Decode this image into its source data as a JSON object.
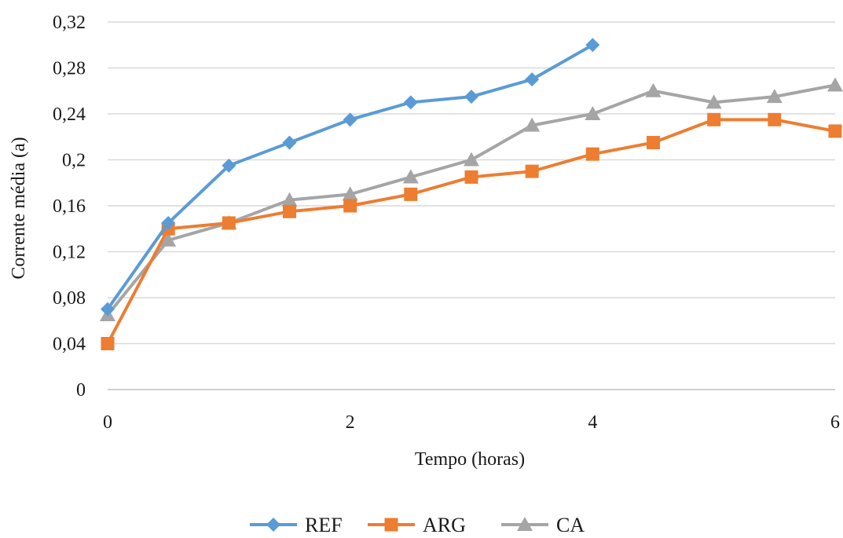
{
  "chart_data": {
    "type": "line",
    "xlabel": "Tempo (horas)",
    "ylabel": "Corrente média (a)",
    "xlim": [
      0,
      6
    ],
    "ylim": [
      0,
      0.32
    ],
    "x_ticks": [
      "0",
      "2",
      "4",
      "6"
    ],
    "y_ticks": [
      "0",
      "0,04",
      "0,08",
      "0,12",
      "0,16",
      "0,2",
      "0,24",
      "0,28",
      "0,32"
    ],
    "grid": "horizontal",
    "legend_position": "bottom",
    "series": [
      {
        "name": "REF",
        "color": "#5b9bd5",
        "marker": "diamond",
        "x": [
          0,
          0.5,
          1,
          1.5,
          2,
          2.5,
          3,
          3.5,
          4
        ],
        "y": [
          0.07,
          0.145,
          0.195,
          0.215,
          0.235,
          0.25,
          0.255,
          0.27,
          0.3
        ]
      },
      {
        "name": "ARG",
        "color": "#ed7d31",
        "marker": "square",
        "x": [
          0,
          0.5,
          1,
          1.5,
          2,
          2.5,
          3,
          3.5,
          4,
          4.5,
          5,
          5.5,
          6
        ],
        "y": [
          0.04,
          0.14,
          0.145,
          0.155,
          0.16,
          0.17,
          0.185,
          0.19,
          0.205,
          0.215,
          0.235,
          0.235,
          0.225
        ]
      },
      {
        "name": "CA",
        "color": "#a5a5a5",
        "marker": "triangle",
        "x": [
          0,
          0.5,
          1,
          1.5,
          2,
          2.5,
          3,
          3.5,
          4,
          4.5,
          5,
          5.5,
          6
        ],
        "y": [
          0.065,
          0.13,
          0.145,
          0.165,
          0.17,
          0.185,
          0.2,
          0.23,
          0.24,
          0.26,
          0.25,
          0.255,
          0.265
        ]
      }
    ]
  }
}
